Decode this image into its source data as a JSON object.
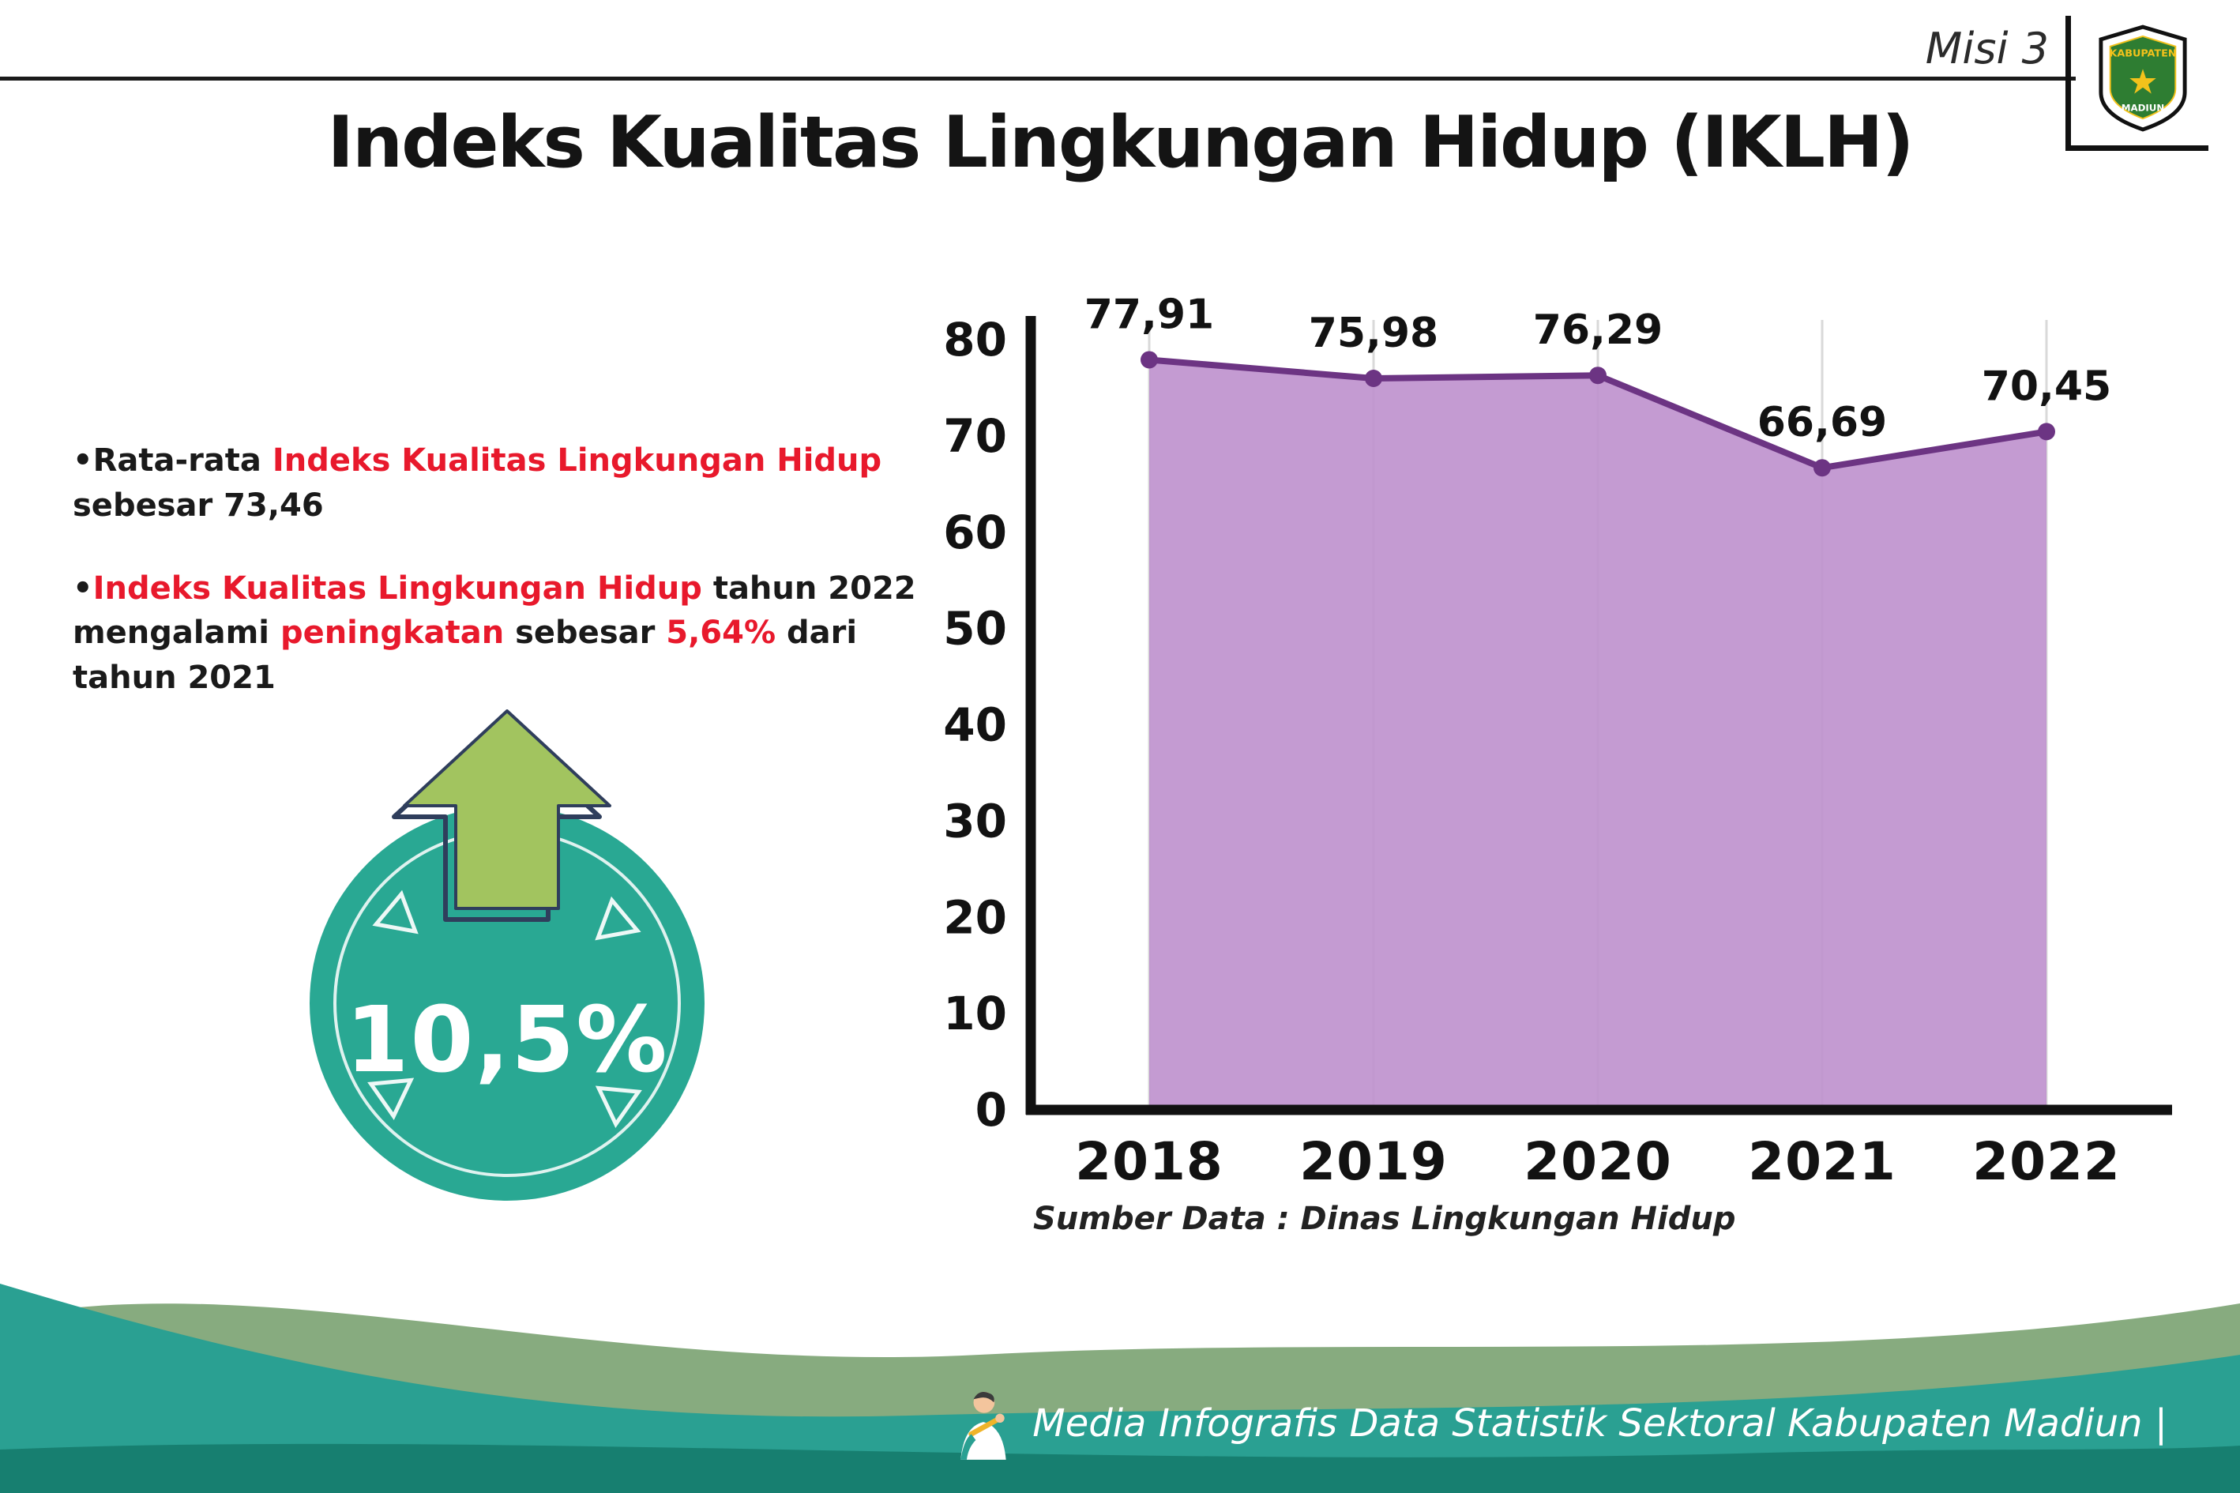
{
  "header": {
    "misi_label": "Misi 3",
    "logo_top": "KABUPATEN",
    "logo_bottom": "MADIUN"
  },
  "title": "Indeks Kualitas Lingkungan Hidup (IKLH)",
  "bullets": {
    "b1_part1": "•Rata-rata ",
    "b1_part2": "Indeks Kualitas Lingkungan Hidup",
    "b1_part3": " sebesar 73,46",
    "b2_part1": "•",
    "b2_part2": "Indeks Kualitas Lingkungan Hidup",
    "b2_part3": " tahun 2022 mengalami ",
    "b2_part4": "peningkatan",
    "b2_part5": " sebesar ",
    "b2_part6": "5,64%",
    "b2_part7": " dari tahun 2021"
  },
  "badge": {
    "value": "10,5%",
    "circle_color": "#29a893",
    "arrow_color": "#a2c45f"
  },
  "chart_data": {
    "type": "area",
    "title": "",
    "categories": [
      "2018",
      "2019",
      "2020",
      "2021",
      "2022"
    ],
    "values": [
      77.91,
      75.98,
      76.29,
      66.69,
      70.45
    ],
    "value_labels": [
      "77,91",
      "75,98",
      "76,29",
      "66,69",
      "70,45"
    ],
    "xlabel": "",
    "ylabel": "",
    "ylim": [
      0,
      80
    ],
    "yticks": [
      0,
      10,
      20,
      30,
      40,
      50,
      60,
      70,
      80
    ],
    "grid": "vertical-light",
    "legend": "none",
    "fill_color": "#bf93ce",
    "line_color": "#6c3483"
  },
  "source_note": "Sumber Data : Dinas Lingkungan Hidup",
  "footer": {
    "text": "Media Infografis Data Statistik Sektoral Kabupaten Madiun |"
  },
  "colors": {
    "accent_red": "#e8192c",
    "footer_teal": "#2aa092",
    "footer_sage": "#87ab7f",
    "footer_dark_teal": "#177f70"
  }
}
